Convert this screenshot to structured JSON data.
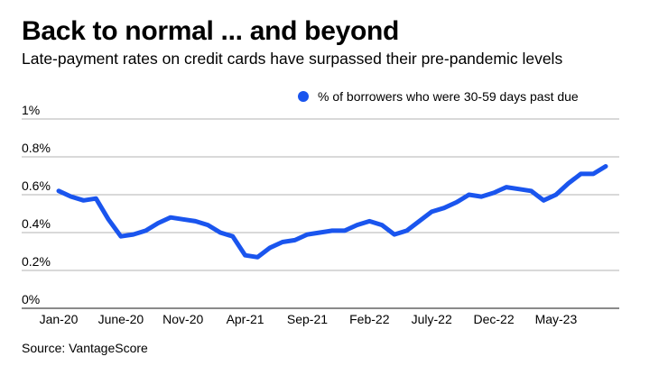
{
  "header": {
    "title": "Back to normal ... and beyond",
    "subtitle": "Late-payment rates on credit cards have surpassed their pre-pandemic levels"
  },
  "footer": {
    "source": "Source: VantageScore"
  },
  "colors": {
    "series": "#1a55ee",
    "grid": "#9a9a9a",
    "baseline": "#444444"
  },
  "chart_data": {
    "type": "line",
    "title": "Back to normal ... and beyond",
    "subtitle": "Late-payment rates on credit cards have surpassed their pre-pandemic levels",
    "xlabel": "",
    "ylabel": "",
    "ylim": [
      0,
      1
    ],
    "y_ticks": [
      0,
      0.2,
      0.4,
      0.6,
      0.8,
      1
    ],
    "y_tick_labels": [
      "0%",
      "0.2%",
      "0.4%",
      "0.6%",
      "0.8%",
      "1%"
    ],
    "x_tick_labels": [
      "Jan-20",
      "June-20",
      "Nov-20",
      "Apr-21",
      "Sep-21",
      "Feb-22",
      "July-22",
      "Dec-22",
      "May-23"
    ],
    "x_tick_index": [
      0,
      5,
      10,
      15,
      20,
      25,
      30,
      35,
      40
    ],
    "grid": true,
    "legend_position": "top-right",
    "series": [
      {
        "name": "% of borrowers who were 30-59 days past due",
        "color": "#1a55ee",
        "x": [
          "2020-01",
          "2020-02",
          "2020-03",
          "2020-04",
          "2020-05",
          "2020-06",
          "2020-07",
          "2020-08",
          "2020-09",
          "2020-10",
          "2020-11",
          "2020-12",
          "2021-01",
          "2021-02",
          "2021-03",
          "2021-04",
          "2021-05",
          "2021-06",
          "2021-07",
          "2021-08",
          "2021-09",
          "2021-10",
          "2021-11",
          "2021-12",
          "2022-01",
          "2022-02",
          "2022-03",
          "2022-04",
          "2022-05",
          "2022-06",
          "2022-07",
          "2022-08",
          "2022-09",
          "2022-10",
          "2022-11",
          "2022-12",
          "2023-01",
          "2023-02",
          "2023-03",
          "2023-04",
          "2023-05",
          "2023-06",
          "2023-07",
          "2023-08",
          "2023-09"
        ],
        "values": [
          0.62,
          0.59,
          0.57,
          0.58,
          0.47,
          0.38,
          0.39,
          0.41,
          0.45,
          0.48,
          0.47,
          0.46,
          0.44,
          0.4,
          0.38,
          0.28,
          0.27,
          0.32,
          0.35,
          0.36,
          0.39,
          0.4,
          0.41,
          0.41,
          0.44,
          0.46,
          0.44,
          0.39,
          0.41,
          0.46,
          0.51,
          0.53,
          0.56,
          0.6,
          0.59,
          0.61,
          0.64,
          0.63,
          0.62,
          0.57,
          0.6,
          0.66,
          0.71,
          0.71,
          0.75
        ]
      }
    ]
  }
}
